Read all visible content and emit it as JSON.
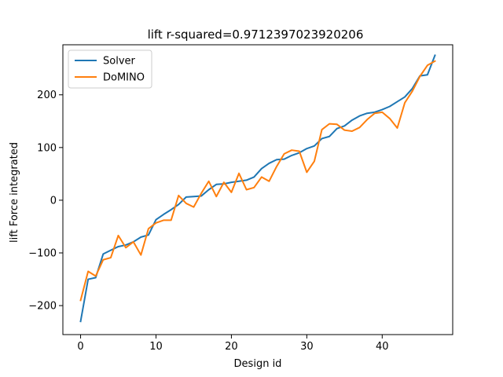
{
  "chart_data": {
    "type": "line",
    "title": "lift r-squared=0.9712397023920206",
    "xlabel": "Design id",
    "ylabel": "lift Force integrated",
    "xlim": [
      -2.35,
      49.35
    ],
    "ylim": [
      -255,
      295
    ],
    "xticks": [
      0,
      10,
      20,
      30,
      40
    ],
    "yticks": [
      -200,
      -100,
      0,
      100,
      200
    ],
    "legend_position": "upper-left",
    "grid": false,
    "series": [
      {
        "name": "Solver",
        "color": "#1f77b4",
        "x": [
          0,
          1,
          2,
          3,
          4,
          5,
          6,
          7,
          8,
          9,
          10,
          11,
          12,
          13,
          14,
          15,
          16,
          17,
          18,
          19,
          20,
          21,
          22,
          23,
          24,
          25,
          26,
          27,
          28,
          29,
          30,
          31,
          32,
          33,
          34,
          35,
          36,
          37,
          38,
          39,
          40,
          41,
          42,
          43,
          44,
          45,
          46,
          47
        ],
        "y": [
          -230,
          -150,
          -147,
          -102,
          -95,
          -88,
          -85,
          -79,
          -70,
          -66,
          -37,
          -27,
          -18,
          -8,
          6,
          7,
          8,
          20,
          30,
          31,
          34,
          36,
          38,
          44,
          60,
          70,
          77,
          78,
          85,
          90,
          98,
          103,
          117,
          121,
          136,
          141,
          152,
          160,
          165,
          167,
          172,
          178,
          187,
          196,
          212,
          236,
          238,
          275
        ]
      },
      {
        "name": "DoMINO",
        "color": "#ff7f0e",
        "x": [
          0,
          1,
          2,
          3,
          4,
          5,
          6,
          7,
          8,
          9,
          10,
          11,
          12,
          13,
          14,
          15,
          16,
          17,
          18,
          19,
          20,
          21,
          22,
          23,
          24,
          25,
          26,
          27,
          28,
          29,
          30,
          31,
          32,
          33,
          34,
          35,
          36,
          37,
          38,
          39,
          40,
          41,
          42,
          43,
          44,
          45,
          46,
          47
        ],
        "y": [
          -190,
          -135,
          -144,
          -113,
          -109,
          -67,
          -90,
          -79,
          -104,
          -54,
          -43,
          -38,
          -38,
          9,
          -6,
          -13,
          13,
          36,
          7,
          34,
          15,
          51,
          20,
          24,
          44,
          36,
          64,
          88,
          95,
          93,
          53,
          74,
          134,
          145,
          144,
          133,
          131,
          138,
          153,
          165,
          167,
          155,
          137,
          185,
          207,
          235,
          256,
          264
        ]
      }
    ]
  }
}
